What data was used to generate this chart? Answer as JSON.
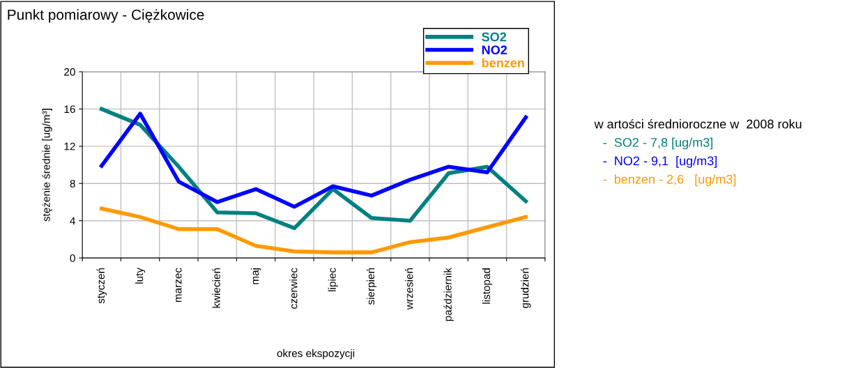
{
  "chart_data": {
    "type": "line",
    "title": "Punkt pomiarowy - Ciężkowice",
    "xlabel": "okres ekspozycji",
    "ylabel": "stężenie średnie [ug/m³]",
    "categories": [
      "styczeń",
      "luty",
      "marzec",
      "kwiecień",
      "maj",
      "czerwiec",
      "lipiec",
      "sierpień",
      "wrzesień",
      "październik",
      "listopad",
      "grudzień"
    ],
    "series": [
      {
        "name": "SO2",
        "color": "#008080",
        "values": [
          16.0,
          14.3,
          9.8,
          4.9,
          4.8,
          3.2,
          7.4,
          4.3,
          4.0,
          9.1,
          9.8,
          6.1
        ]
      },
      {
        "name": "NO2",
        "color": "#0000ff",
        "values": [
          9.9,
          15.5,
          8.2,
          6.0,
          7.4,
          5.5,
          7.7,
          6.7,
          8.4,
          9.8,
          9.2,
          15.1
        ]
      },
      {
        "name": "benzen",
        "color": "#ff9900",
        "values": [
          5.3,
          4.4,
          3.1,
          3.1,
          1.3,
          0.7,
          0.6,
          0.6,
          1.7,
          2.2,
          3.3,
          4.4
        ]
      }
    ],
    "ylim": [
      0,
      20
    ],
    "yticks": [
      0,
      4,
      8,
      12,
      16,
      20
    ],
    "grid": true,
    "legend": "top right",
    "marker": "none",
    "line_style": "solid",
    "annotations": [
      "w artości średnioroczne w  2008 roku",
      "-  SO2 - 7,8 [ug/m3]",
      "-  NO2 - 9,1  [ug/m3]",
      "-  benzen - 2,6   [ug/m3]"
    ]
  }
}
